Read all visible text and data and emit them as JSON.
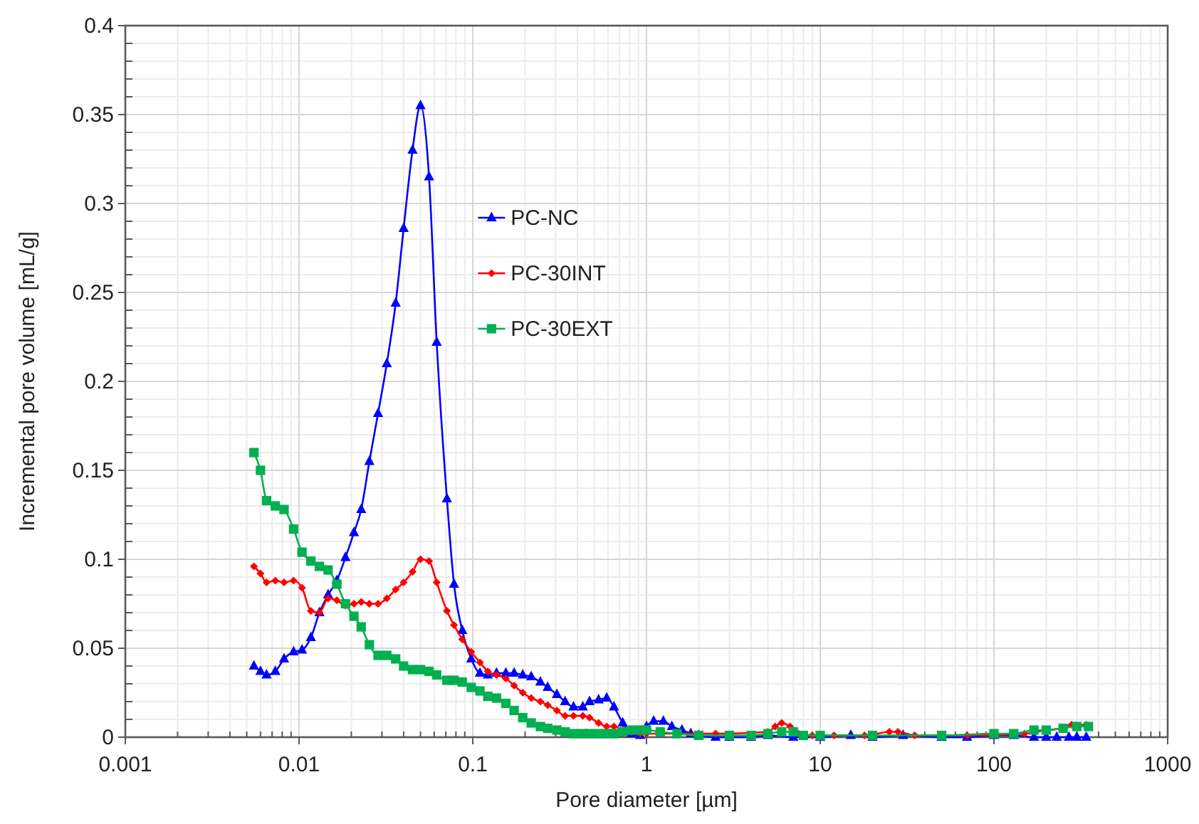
{
  "chart_data": {
    "type": "line",
    "xlabel": "Pore diameter [µm]",
    "ylabel": "Incremental pore volume [mL/g]",
    "log": "x",
    "grid": true,
    "legend": "top",
    "line_style": "solid",
    "xlim": [
      0.001,
      1000
    ],
    "xticks": [
      0.001,
      0.01,
      0.1,
      1,
      10,
      100,
      1000
    ],
    "ylim": [
      0,
      0.4
    ],
    "yticks": [
      0,
      0.05,
      0.1,
      0.15,
      0.2,
      0.25,
      0.3,
      0.35,
      0.4
    ],
    "series": [
      {
        "name": "PC-NC",
        "color": "#0000ff",
        "marker": "triangle",
        "x": [
          0.0055,
          0.006,
          0.0065,
          0.0073,
          0.0082,
          0.0093,
          0.0104,
          0.0117,
          0.0131,
          0.0147,
          0.0165,
          0.0185,
          0.0207,
          0.0228,
          0.0254,
          0.0285,
          0.032,
          0.036,
          0.04,
          0.045,
          0.05,
          0.056,
          0.062,
          0.071,
          0.078,
          0.087,
          0.098,
          0.11,
          0.122,
          0.137,
          0.155,
          0.173,
          0.194,
          0.217,
          0.245,
          0.27,
          0.305,
          0.34,
          0.38,
          0.43,
          0.47,
          0.53,
          0.59,
          0.65,
          0.73,
          0.82,
          0.92,
          1.0,
          1.1,
          1.25,
          1.4,
          1.6,
          1.8,
          2.0,
          2.5,
          3,
          4,
          5,
          7,
          10,
          15,
          20,
          30,
          50,
          70,
          100,
          130,
          170,
          200,
          230,
          270,
          300,
          340
        ],
        "values": [
          0.04,
          0.037,
          0.035,
          0.037,
          0.044,
          0.048,
          0.049,
          0.056,
          0.07,
          0.08,
          0.088,
          0.101,
          0.115,
          0.128,
          0.155,
          0.182,
          0.21,
          0.244,
          0.286,
          0.33,
          0.355,
          0.315,
          0.222,
          0.134,
          0.086,
          0.06,
          0.044,
          0.036,
          0.035,
          0.036,
          0.036,
          0.036,
          0.035,
          0.034,
          0.031,
          0.028,
          0.024,
          0.02,
          0.017,
          0.017,
          0.02,
          0.021,
          0.022,
          0.017,
          0.008,
          0.002,
          0.001,
          0.006,
          0.009,
          0.009,
          0.006,
          0.004,
          0.002,
          0.001,
          0,
          0,
          0,
          0.001,
          0,
          0,
          0.001,
          0,
          0.001,
          0,
          0,
          0.001,
          0.001,
          0,
          0,
          0,
          0,
          0,
          0
        ]
      },
      {
        "name": "PC-30INT",
        "color": "#ff0000",
        "marker": "diamond",
        "x": [
          0.0055,
          0.006,
          0.0065,
          0.0073,
          0.0082,
          0.0093,
          0.0104,
          0.0117,
          0.0131,
          0.0147,
          0.0165,
          0.0185,
          0.0207,
          0.0228,
          0.0254,
          0.0285,
          0.032,
          0.036,
          0.04,
          0.045,
          0.05,
          0.056,
          0.062,
          0.071,
          0.078,
          0.087,
          0.098,
          0.11,
          0.122,
          0.137,
          0.155,
          0.173,
          0.194,
          0.217,
          0.245,
          0.27,
          0.305,
          0.34,
          0.38,
          0.43,
          0.47,
          0.53,
          0.59,
          0.65,
          0.73,
          0.82,
          0.92,
          1.0,
          1.2,
          1.5,
          2,
          2.5,
          3,
          4,
          5,
          5.5,
          6,
          6.7,
          7.5,
          9,
          12,
          18,
          25,
          28,
          35,
          50,
          70,
          100,
          150,
          200,
          250,
          280,
          340
        ],
        "values": [
          0.096,
          0.092,
          0.087,
          0.088,
          0.087,
          0.088,
          0.084,
          0.071,
          0.07,
          0.078,
          0.077,
          0.074,
          0.075,
          0.076,
          0.075,
          0.075,
          0.078,
          0.083,
          0.087,
          0.093,
          0.1,
          0.099,
          0.087,
          0.071,
          0.063,
          0.055,
          0.048,
          0.042,
          0.037,
          0.035,
          0.033,
          0.029,
          0.025,
          0.022,
          0.02,
          0.018,
          0.015,
          0.012,
          0.012,
          0.012,
          0.011,
          0.008,
          0.006,
          0.006,
          0.004,
          0.003,
          0.002,
          0.002,
          0.002,
          null,
          0.002,
          0.002,
          null,
          null,
          0.003,
          0.006,
          0.008,
          0.006,
          0.002,
          0.001,
          0.001,
          0.001,
          0.003,
          0.003,
          0.001,
          null,
          0.001,
          null,
          0.002,
          0.004,
          0.005,
          0.007,
          0.007
        ]
      },
      {
        "name": "PC-30EXT",
        "color": "#00b050",
        "marker": "square",
        "x": [
          0.0055,
          0.006,
          0.0065,
          0.0073,
          0.0082,
          0.0093,
          0.0104,
          0.0117,
          0.0131,
          0.0147,
          0.0165,
          0.0185,
          0.0207,
          0.0228,
          0.0254,
          0.0285,
          0.032,
          0.036,
          0.04,
          0.045,
          0.05,
          0.056,
          0.062,
          0.071,
          0.078,
          0.087,
          0.098,
          0.11,
          0.122,
          0.137,
          0.155,
          0.173,
          0.194,
          0.217,
          0.245,
          0.27,
          0.305,
          0.34,
          0.38,
          0.43,
          0.47,
          0.53,
          0.59,
          0.65,
          0.73,
          0.82,
          0.92,
          1.0,
          1.2,
          1.5,
          2,
          3,
          4,
          5,
          6,
          7,
          8,
          10,
          20,
          50,
          100,
          130,
          170,
          200,
          250,
          300,
          350
        ],
        "values": [
          0.16,
          0.15,
          0.133,
          0.13,
          0.128,
          0.117,
          0.104,
          0.099,
          0.096,
          0.094,
          0.086,
          0.075,
          0.068,
          0.062,
          0.052,
          0.046,
          0.046,
          0.044,
          0.04,
          0.038,
          0.038,
          0.037,
          0.035,
          0.032,
          0.032,
          0.031,
          0.028,
          0.026,
          0.023,
          0.022,
          0.019,
          0.015,
          0.011,
          0.008,
          0.006,
          0.005,
          0.004,
          0.003,
          0.002,
          0.002,
          0.002,
          0.002,
          0.002,
          0.002,
          0.003,
          0.004,
          0.004,
          0.004,
          0.003,
          0.002,
          0.001,
          0.001,
          0.001,
          0.002,
          0.003,
          0.003,
          0.001,
          0.001,
          0.001,
          0.001,
          0.002,
          0.002,
          0.004,
          0.004,
          0.005,
          0.006,
          0.006
        ]
      }
    ]
  }
}
